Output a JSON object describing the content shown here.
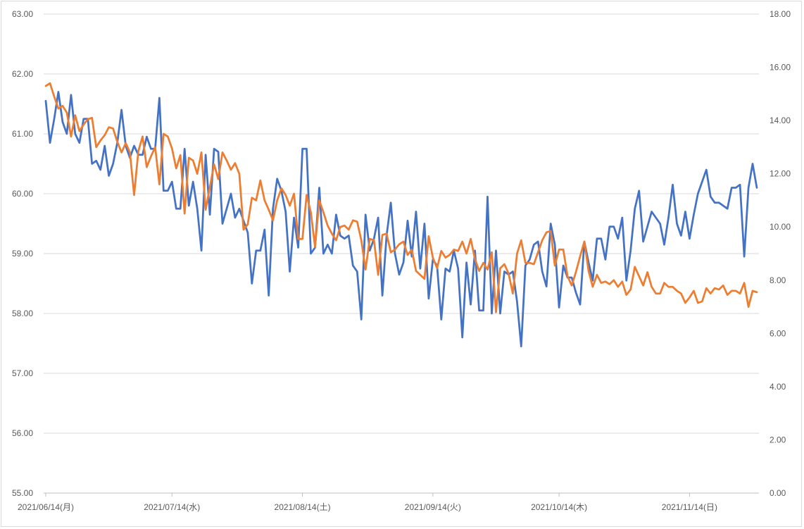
{
  "chart_data": {
    "type": "line",
    "title": "",
    "xlabel": "",
    "ylabel": "",
    "y_left_ticks": [
      "55.00",
      "56.00",
      "57.00",
      "58.00",
      "59.00",
      "60.00",
      "61.00",
      "62.00",
      "63.00"
    ],
    "y_right_ticks": [
      "0.00",
      "2.00",
      "4.00",
      "6.00",
      "8.00",
      "10.00",
      "12.00",
      "14.00",
      "16.00",
      "18.00"
    ],
    "x_ticks": [
      "2021/06/14(月)",
      "2021/07/14(水)",
      "2021/08/14(土)",
      "2021/09/14(火)",
      "2021/10/14(木)",
      "2021/11/14(日)"
    ],
    "ylim_left": [
      55,
      63
    ],
    "ylim_right": [
      0,
      18
    ],
    "grid": true,
    "legend": "none",
    "colors": {
      "blue": "#4472c4",
      "orange": "#ed7d31"
    },
    "series": [
      {
        "axis": "left",
        "color": "#4472c4",
        "x": [
          "2021-06-14",
          "2021-06-15",
          "2021-06-16",
          "2021-06-17",
          "2021-06-18",
          "2021-06-19",
          "2021-06-20",
          "2021-06-21",
          "2021-06-22",
          "2021-06-23",
          "2021-06-24",
          "2021-06-25",
          "2021-06-26",
          "2021-06-27",
          "2021-06-28",
          "2021-06-29",
          "2021-06-30",
          "2021-07-01",
          "2021-07-02",
          "2021-07-03",
          "2021-07-04",
          "2021-07-05",
          "2021-07-06",
          "2021-07-07",
          "2021-07-08",
          "2021-07-09",
          "2021-07-10",
          "2021-07-11",
          "2021-07-12",
          "2021-07-13",
          "2021-07-14",
          "2021-07-15",
          "2021-07-16",
          "2021-07-17",
          "2021-07-18",
          "2021-07-19",
          "2021-07-20",
          "2021-07-21",
          "2021-07-22",
          "2021-07-23",
          "2021-07-24",
          "2021-07-25",
          "2021-07-26",
          "2021-07-27",
          "2021-07-28",
          "2021-07-29",
          "2021-07-30",
          "2021-07-31",
          "2021-08-01",
          "2021-08-02",
          "2021-08-03",
          "2021-08-04",
          "2021-08-05",
          "2021-08-06",
          "2021-08-07",
          "2021-08-08",
          "2021-08-09",
          "2021-08-10",
          "2021-08-11",
          "2021-08-12",
          "2021-08-13",
          "2021-08-14",
          "2021-08-15",
          "2021-08-16",
          "2021-08-17",
          "2021-08-18",
          "2021-08-19",
          "2021-08-20",
          "2021-08-21",
          "2021-08-22",
          "2021-08-23",
          "2021-08-24",
          "2021-08-25",
          "2021-08-26",
          "2021-08-27",
          "2021-08-28",
          "2021-08-29",
          "2021-08-30",
          "2021-08-31",
          "2021-09-01",
          "2021-09-02",
          "2021-09-03",
          "2021-09-04",
          "2021-09-05",
          "2021-09-06",
          "2021-09-07",
          "2021-09-08",
          "2021-09-09",
          "2021-09-10",
          "2021-09-11",
          "2021-09-12",
          "2021-09-13",
          "2021-09-14",
          "2021-09-15",
          "2021-09-16",
          "2021-09-17",
          "2021-09-18",
          "2021-09-19",
          "2021-09-20",
          "2021-09-21",
          "2021-09-22",
          "2021-09-23",
          "2021-09-24",
          "2021-09-25",
          "2021-09-26",
          "2021-09-27",
          "2021-09-28",
          "2021-09-29",
          "2021-09-30",
          "2021-10-01",
          "2021-10-02",
          "2021-10-03",
          "2021-10-04",
          "2021-10-05",
          "2021-10-06",
          "2021-10-07",
          "2021-10-08",
          "2021-10-09",
          "2021-10-10",
          "2021-10-11",
          "2021-10-12",
          "2021-10-13",
          "2021-10-14",
          "2021-10-15",
          "2021-10-16",
          "2021-10-17",
          "2021-10-18",
          "2021-10-19",
          "2021-10-20",
          "2021-10-21",
          "2021-10-22",
          "2021-10-23",
          "2021-10-24",
          "2021-10-25",
          "2021-10-26",
          "2021-10-27",
          "2021-10-28",
          "2021-10-29",
          "2021-10-30",
          "2021-10-31",
          "2021-11-01",
          "2021-11-02",
          "2021-11-03",
          "2021-11-04",
          "2021-11-05",
          "2021-11-06",
          "2021-11-07",
          "2021-11-08",
          "2021-11-09",
          "2021-11-10",
          "2021-11-11",
          "2021-11-12",
          "2021-11-13",
          "2021-11-14",
          "2021-11-15",
          "2021-11-16",
          "2021-11-17",
          "2021-11-18",
          "2021-11-19",
          "2021-11-20",
          "2021-11-21",
          "2021-11-22",
          "2021-11-23",
          "2021-11-24",
          "2021-11-25",
          "2021-11-26",
          "2021-11-27",
          "2021-11-28",
          "2021-11-29",
          "2021-11-30"
        ],
        "values": [
          61.55,
          60.85,
          61.25,
          61.7,
          61.2,
          61.0,
          61.65,
          61.0,
          60.85,
          61.25,
          61.25,
          60.5,
          60.55,
          60.4,
          60.8,
          60.3,
          60.5,
          60.85,
          61.4,
          60.8,
          60.6,
          60.8,
          60.65,
          60.65,
          60.95,
          60.75,
          60.75,
          61.6,
          60.05,
          60.05,
          60.2,
          59.75,
          59.75,
          60.75,
          59.8,
          60.2,
          59.75,
          59.05,
          60.65,
          59.65,
          60.75,
          60.7,
          59.5,
          59.75,
          60.0,
          59.6,
          59.75,
          59.55,
          59.35,
          58.5,
          59.05,
          59.05,
          59.4,
          58.3,
          59.75,
          60.25,
          60.05,
          59.7,
          58.7,
          59.6,
          59.1,
          60.75,
          60.75,
          59.0,
          59.1,
          60.1,
          59.0,
          59.15,
          59.0,
          59.65,
          59.3,
          59.25,
          59.3,
          58.8,
          58.7,
          57.9,
          59.65,
          59.05,
          59.25,
          59.6,
          58.3,
          59.3,
          59.85,
          59.0,
          58.65,
          58.85,
          59.55,
          58.95,
          59.7,
          58.75,
          59.5,
          58.25,
          58.9,
          58.8,
          57.9,
          58.75,
          58.7,
          59.05,
          58.75,
          57.6,
          58.85,
          58.15,
          59.05,
          58.05,
          58.05,
          59.95,
          58.0,
          59.05,
          58.0,
          58.7,
          58.65,
          58.7,
          58.2,
          57.45,
          58.8,
          58.9,
          59.15,
          59.2,
          58.7,
          58.45,
          59.5,
          59.15,
          58.1,
          58.8,
          58.6,
          58.6,
          58.35,
          58.15,
          59.2,
          58.85,
          58.55,
          59.25,
          59.25,
          58.9,
          59.45,
          59.45,
          59.25,
          59.6,
          58.55,
          59.05,
          59.75,
          60.05,
          59.2,
          59.45,
          59.7,
          59.6,
          59.5,
          59.15,
          59.6,
          60.15,
          59.5,
          59.3,
          59.7,
          59.25,
          59.65,
          60.0,
          60.2,
          60.4,
          59.95,
          59.85,
          59.85,
          59.8,
          59.75,
          60.1,
          60.1,
          60.15,
          58.95,
          60.1,
          60.5,
          60.1
        ]
      },
      {
        "axis": "right",
        "color": "#ed7d31",
        "x": [
          "2021-06-14",
          "2021-06-15",
          "2021-06-16",
          "2021-06-17",
          "2021-06-18",
          "2021-06-19",
          "2021-06-20",
          "2021-06-21",
          "2021-06-22",
          "2021-06-23",
          "2021-06-24",
          "2021-06-25",
          "2021-06-26",
          "2021-06-27",
          "2021-06-28",
          "2021-06-29",
          "2021-06-30",
          "2021-07-01",
          "2021-07-02",
          "2021-07-03",
          "2021-07-04",
          "2021-07-05",
          "2021-07-06",
          "2021-07-07",
          "2021-07-08",
          "2021-07-09",
          "2021-07-10",
          "2021-07-11",
          "2021-07-12",
          "2021-07-13",
          "2021-07-14",
          "2021-07-15",
          "2021-07-16",
          "2021-07-17",
          "2021-07-18",
          "2021-07-19",
          "2021-07-20",
          "2021-07-21",
          "2021-07-22",
          "2021-07-23",
          "2021-07-24",
          "2021-07-25",
          "2021-07-26",
          "2021-07-27",
          "2021-07-28",
          "2021-07-29",
          "2021-07-30",
          "2021-07-31",
          "2021-08-01",
          "2021-08-02",
          "2021-08-03",
          "2021-08-04",
          "2021-08-05",
          "2021-08-06",
          "2021-08-07",
          "2021-08-08",
          "2021-08-09",
          "2021-08-10",
          "2021-08-11",
          "2021-08-12",
          "2021-08-13",
          "2021-08-14",
          "2021-08-15",
          "2021-08-16",
          "2021-08-17",
          "2021-08-18",
          "2021-08-19",
          "2021-08-20",
          "2021-08-21",
          "2021-08-22",
          "2021-08-23",
          "2021-08-24",
          "2021-08-25",
          "2021-08-26",
          "2021-08-27",
          "2021-08-28",
          "2021-08-29",
          "2021-08-30",
          "2021-08-31",
          "2021-09-01",
          "2021-09-02",
          "2021-09-03",
          "2021-09-04",
          "2021-09-05",
          "2021-09-06",
          "2021-09-07",
          "2021-09-08",
          "2021-09-09",
          "2021-09-10",
          "2021-09-11",
          "2021-09-12",
          "2021-09-13",
          "2021-09-14",
          "2021-09-15",
          "2021-09-16",
          "2021-09-17",
          "2021-09-18",
          "2021-09-19",
          "2021-09-20",
          "2021-09-21",
          "2021-09-22",
          "2021-09-23",
          "2021-09-24",
          "2021-09-25",
          "2021-09-26",
          "2021-09-27",
          "2021-09-28",
          "2021-09-29",
          "2021-09-30",
          "2021-10-01",
          "2021-10-02",
          "2021-10-03",
          "2021-10-04",
          "2021-10-05",
          "2021-10-06",
          "2021-10-07",
          "2021-10-08",
          "2021-10-09",
          "2021-10-10",
          "2021-10-11",
          "2021-10-12",
          "2021-10-13",
          "2021-10-14",
          "2021-10-15",
          "2021-10-16",
          "2021-10-17",
          "2021-10-18",
          "2021-10-19",
          "2021-10-20",
          "2021-10-21",
          "2021-10-22",
          "2021-10-23",
          "2021-10-24",
          "2021-10-25",
          "2021-10-26",
          "2021-10-27",
          "2021-10-28",
          "2021-10-29",
          "2021-10-30",
          "2021-10-31",
          "2021-11-01",
          "2021-11-02",
          "2021-11-03",
          "2021-11-04",
          "2021-11-05",
          "2021-11-06",
          "2021-11-07",
          "2021-11-08",
          "2021-11-09",
          "2021-11-10",
          "2021-11-11",
          "2021-11-12",
          "2021-11-13",
          "2021-11-14",
          "2021-11-15",
          "2021-11-16",
          "2021-11-17",
          "2021-11-18",
          "2021-11-19",
          "2021-11-20",
          "2021-11-21",
          "2021-11-22",
          "2021-11-23",
          "2021-11-24",
          "2021-11-25",
          "2021-11-26",
          "2021-11-27",
          "2021-11-28",
          "2021-11-29",
          "2021-11-30"
        ],
        "values": [
          15.3,
          15.4,
          14.9,
          14.45,
          14.55,
          14.3,
          13.4,
          14.2,
          13.6,
          13.85,
          14.05,
          14.1,
          13.0,
          13.25,
          13.45,
          13.75,
          13.7,
          13.2,
          12.8,
          13.15,
          12.8,
          11.2,
          12.85,
          13.4,
          12.25,
          12.65,
          13.0,
          11.6,
          13.5,
          13.4,
          12.95,
          12.2,
          12.7,
          10.5,
          12.6,
          12.5,
          12.0,
          12.8,
          10.65,
          11.5,
          12.35,
          11.8,
          12.8,
          12.5,
          12.15,
          12.4,
          12.0,
          9.9,
          10.1,
          11.1,
          11.0,
          11.75,
          11.0,
          10.65,
          10.25,
          11.0,
          11.45,
          11.2,
          10.8,
          11.25,
          9.55,
          9.55,
          11.2,
          10.55,
          9.25,
          11.0,
          10.55,
          10.05,
          9.75,
          9.5,
          10.0,
          10.05,
          9.9,
          10.25,
          10.2,
          9.5,
          8.4,
          9.55,
          9.5,
          8.2,
          9.7,
          9.75,
          9.05,
          9.15,
          9.35,
          9.45,
          8.95,
          9.15,
          8.35,
          8.2,
          8.05,
          9.65,
          8.85,
          8.45,
          9.1,
          8.85,
          8.95,
          9.15,
          9.1,
          9.45,
          9.0,
          9.55,
          8.8,
          8.35,
          8.65,
          8.4,
          9.05,
          6.8,
          8.45,
          8.6,
          8.25,
          7.5,
          9.0,
          9.5,
          8.65,
          8.65,
          8.6,
          9.05,
          9.5,
          9.8,
          9.85,
          8.55,
          9.15,
          9.15,
          8.15,
          7.8,
          8.3,
          8.9,
          9.45,
          8.35,
          7.75,
          8.2,
          7.9,
          7.95,
          7.85,
          8.0,
          7.75,
          7.95,
          7.45,
          7.65,
          8.5,
          8.15,
          7.8,
          8.3,
          7.75,
          7.5,
          7.5,
          7.9,
          7.75,
          7.75,
          7.6,
          7.5,
          7.15,
          7.35,
          7.6,
          7.15,
          7.2,
          7.7,
          7.5,
          7.7,
          7.65,
          7.8,
          7.45,
          7.6,
          7.6,
          7.5,
          7.9,
          7.0,
          7.6,
          7.55
        ]
      }
    ]
  }
}
